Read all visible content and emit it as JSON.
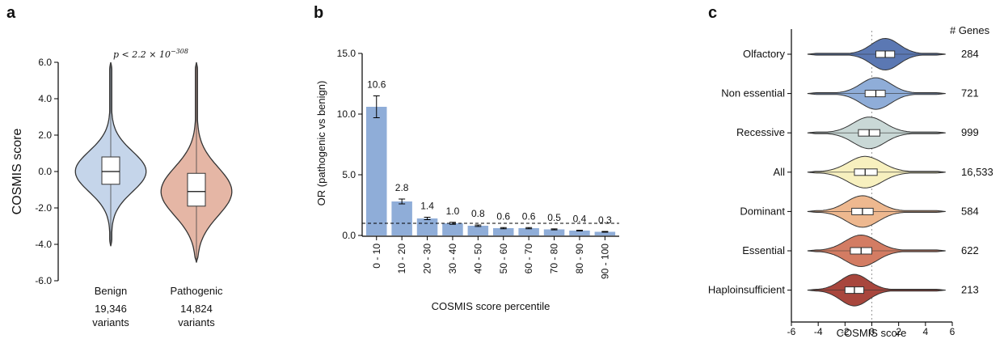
{
  "chart_data": [
    {
      "type": "violin",
      "panel_label": "a",
      "ylabel": "COSMIS score",
      "ylim": [
        -6,
        6
      ],
      "yticks": [
        "6.0",
        "4.0",
        "2.0",
        "0.0",
        "-2.0",
        "-4.0",
        "-6.0"
      ],
      "annotation": "p < 2.2 × 10",
      "annotation_exp": "−308",
      "groups": [
        {
          "name": "Benign",
          "count_line1": "19,346",
          "count_line2": "variants",
          "color": "#c5d5ea",
          "median": 0.0,
          "q1": -0.7,
          "q3": 0.8,
          "min": -4.1,
          "max": 6.0
        },
        {
          "name": "Pathogenic",
          "count_line1": "14,824",
          "count_line2": "variants",
          "color": "#e5b6a5",
          "median": -1.1,
          "q1": -1.9,
          "q3": -0.1,
          "min": -5.0,
          "max": 6.0
        }
      ]
    },
    {
      "type": "bar",
      "panel_label": "b",
      "xlabel": "COSMIS score percentile",
      "ylabel": "OR (pathogenic vs benign)",
      "ylim": [
        0,
        15
      ],
      "yticks": [
        "0.0",
        "5.0",
        "10.0",
        "15.0"
      ],
      "reference_line": 1.0,
      "bar_color": "#8fadd8",
      "categories": [
        "0 - 10",
        "10 - 20",
        "20 - 30",
        "30 - 40",
        "40 - 50",
        "50 - 60",
        "60 - 70",
        "70 - 80",
        "80 - 90",
        "90 - 100"
      ],
      "values": [
        10.6,
        2.8,
        1.4,
        1.0,
        0.8,
        0.6,
        0.6,
        0.5,
        0.4,
        0.3
      ],
      "value_labels": [
        "10.6",
        "2.8",
        "1.4",
        "1.0",
        "0.8",
        "0.6",
        "0.6",
        "0.5",
        "0.4",
        "0.3"
      ],
      "error_low": [
        9.7,
        2.6,
        1.3,
        0.92,
        0.74,
        0.55,
        0.55,
        0.46,
        0.37,
        0.27
      ],
      "error_high": [
        11.5,
        3.0,
        1.5,
        1.08,
        0.86,
        0.65,
        0.65,
        0.54,
        0.43,
        0.33
      ]
    },
    {
      "type": "violin",
      "panel_label": "c",
      "xlabel": "COSMIS score",
      "xlim": [
        -6,
        6
      ],
      "xticks": [
        "-6",
        "-4",
        "-2",
        "0",
        "2",
        "4",
        "6"
      ],
      "count_header": "# Genes",
      "categories": [
        {
          "name": "Olfactory",
          "count": "284",
          "color": "#5b78b3",
          "median": 1.0,
          "q1": 0.3,
          "q3": 1.7
        },
        {
          "name": "Non essential",
          "count": "721",
          "color": "#8fadd8",
          "median": 0.3,
          "q1": -0.5,
          "q3": 1.0
        },
        {
          "name": "Recessive",
          "count": "999",
          "color": "#c9d8d6",
          "median": -0.2,
          "q1": -1.0,
          "q3": 0.6
        },
        {
          "name": "All",
          "count": "16,533",
          "color": "#f7f0bf",
          "median": -0.5,
          "q1": -1.3,
          "q3": 0.4
        },
        {
          "name": "Dominant",
          "count": "584",
          "color": "#eeb88f",
          "median": -0.7,
          "q1": -1.5,
          "q3": 0.1
        },
        {
          "name": "Essential",
          "count": "622",
          "color": "#d37c63",
          "median": -0.8,
          "q1": -1.6,
          "q3": 0.0
        },
        {
          "name": "Haploinsufficient",
          "count": "213",
          "color": "#a8463d",
          "median": -1.3,
          "q1": -2.0,
          "q3": -0.6
        }
      ]
    }
  ]
}
